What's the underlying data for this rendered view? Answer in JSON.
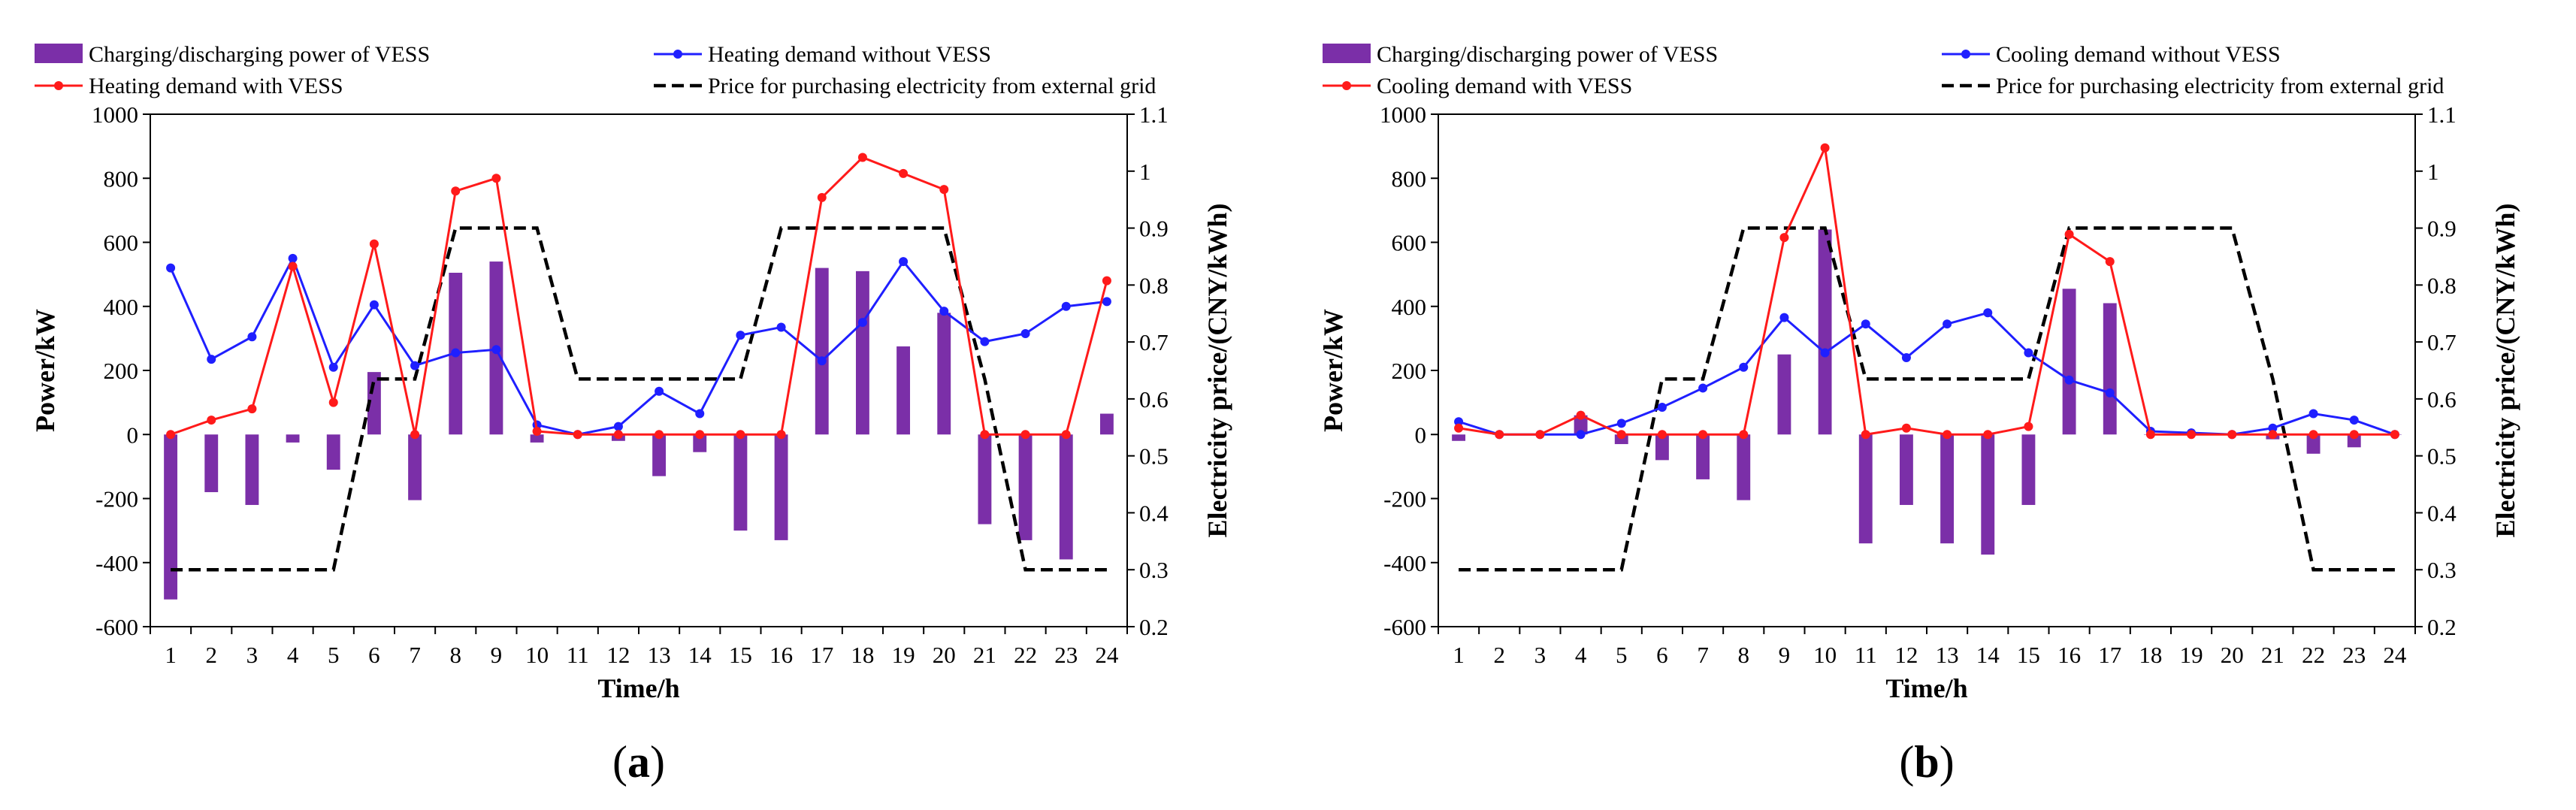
{
  "colors": {
    "bar": "#7B2FA8",
    "line_without": "#1F1FFF",
    "line_with": "#FF1A1A",
    "price": "#000000"
  },
  "chart_data": [
    {
      "type": "bar+line",
      "caption": [
        "(",
        "a",
        ")"
      ],
      "xlabel": "Time/h",
      "ylabel": "Power/kW",
      "y2label": "Electricity price/(CNY/kWh)",
      "categories": [
        "1",
        "2",
        "3",
        "4",
        "5",
        "6",
        "7",
        "8",
        "9",
        "10",
        "11",
        "12",
        "13",
        "14",
        "15",
        "16",
        "17",
        "18",
        "19",
        "20",
        "21",
        "22",
        "23",
        "24"
      ],
      "ylim": [
        -600,
        1000
      ],
      "yticks": [
        -600,
        -400,
        -200,
        0,
        200,
        400,
        600,
        800,
        1000
      ],
      "ytick_labels": [
        "-600",
        "-400",
        "-200",
        "0",
        "200",
        "400",
        "600",
        "800",
        "1000"
      ],
      "y2lim": [
        0.2,
        1.1
      ],
      "y2ticks": [
        0.2,
        0.3,
        0.4,
        0.5,
        0.6,
        0.7,
        0.8,
        0.9,
        1.0,
        1.1
      ],
      "y2tick_labels": [
        "0.2",
        "0.3",
        "0.4",
        "0.5",
        "0.6",
        "0.7",
        "0.8",
        "0.9",
        "1",
        "1.1"
      ],
      "legend": {
        "bars": "Charging/discharging power of VESS",
        "without": "Heating demand without VESS",
        "with": "Heating demand with VESS",
        "price": "Price for purchasing electricity from external grid"
      },
      "series": [
        {
          "name": "Charging/discharging power of VESS",
          "kind": "bar",
          "axis": "left",
          "values": [
            -515,
            -180,
            -220,
            -25,
            -110,
            195,
            -205,
            505,
            540,
            -25,
            5,
            -20,
            -130,
            -55,
            -300,
            -330,
            520,
            510,
            275,
            380,
            -280,
            -330,
            -390,
            65
          ]
        },
        {
          "name": "Heating demand without VESS",
          "kind": "line",
          "axis": "left",
          "values": [
            520,
            235,
            305,
            550,
            210,
            405,
            215,
            255,
            265,
            30,
            0,
            25,
            135,
            65,
            310,
            335,
            230,
            350,
            540,
            385,
            290,
            315,
            400,
            415
          ]
        },
        {
          "name": "Heating demand with VESS",
          "kind": "line",
          "axis": "left",
          "values": [
            0,
            45,
            80,
            525,
            100,
            595,
            0,
            760,
            800,
            10,
            0,
            0,
            0,
            0,
            0,
            0,
            740,
            865,
            815,
            765,
            0,
            0,
            0,
            480
          ]
        },
        {
          "name": "Price for purchasing electricity from external grid",
          "kind": "line",
          "axis": "right",
          "values": [
            0.3,
            0.3,
            0.3,
            0.3,
            0.3,
            0.635,
            0.635,
            0.9,
            0.9,
            0.9,
            0.635,
            0.635,
            0.635,
            0.635,
            0.635,
            0.9,
            0.9,
            0.9,
            0.9,
            0.9,
            0.635,
            0.3,
            0.3,
            0.3
          ]
        }
      ]
    },
    {
      "type": "bar+line",
      "caption": [
        "(",
        "b",
        ")"
      ],
      "xlabel": "Time/h",
      "ylabel": "Power/kW",
      "y2label": "Electricity price/(CNY/kWh)",
      "categories": [
        "1",
        "2",
        "3",
        "4",
        "5",
        "6",
        "7",
        "8",
        "9",
        "10",
        "11",
        "12",
        "13",
        "14",
        "15",
        "16",
        "17",
        "18",
        "19",
        "20",
        "21",
        "22",
        "23",
        "24"
      ],
      "ylim": [
        -600,
        1000
      ],
      "yticks": [
        -600,
        -400,
        -200,
        0,
        200,
        400,
        600,
        800,
        1000
      ],
      "ytick_labels": [
        "-600",
        "-400",
        "-200",
        "0",
        "200",
        "400",
        "600",
        "800",
        "1000"
      ],
      "y2lim": [
        0.2,
        1.1
      ],
      "y2ticks": [
        0.2,
        0.3,
        0.4,
        0.5,
        0.6,
        0.7,
        0.8,
        0.9,
        1.0,
        1.1
      ],
      "y2tick_labels": [
        "0.2",
        "0.3",
        "0.4",
        "0.5",
        "0.6",
        "0.7",
        "0.8",
        "0.9",
        "1",
        "1.1"
      ],
      "legend": {
        "bars": "Charging/discharging power of VESS",
        "without": "Cooling demand without VESS",
        "with": "Cooling demand with VESS",
        "price": "Price for purchasing electricity from external grid"
      },
      "series": [
        {
          "name": "Charging/discharging power of VESS",
          "kind": "bar",
          "axis": "left",
          "values": [
            -20,
            0,
            0,
            60,
            -30,
            -80,
            -140,
            -205,
            250,
            640,
            -340,
            -220,
            -340,
            -375,
            -220,
            455,
            410,
            0,
            0,
            0,
            -15,
            -60,
            -40,
            0
          ]
        },
        {
          "name": "Cooling demand without VESS",
          "kind": "line",
          "axis": "left",
          "values": [
            40,
            0,
            0,
            0,
            35,
            85,
            145,
            210,
            365,
            255,
            345,
            240,
            345,
            380,
            255,
            170,
            130,
            10,
            5,
            0,
            20,
            65,
            45,
            0
          ]
        },
        {
          "name": "Cooling demand with VESS",
          "kind": "line",
          "axis": "left",
          "values": [
            20,
            0,
            0,
            60,
            0,
            0,
            0,
            0,
            615,
            895,
            0,
            20,
            0,
            0,
            25,
            625,
            540,
            0,
            0,
            0,
            0,
            0,
            0,
            0
          ]
        },
        {
          "name": "Price for purchasing electricity from external grid",
          "kind": "line",
          "axis": "right",
          "values": [
            0.3,
            0.3,
            0.3,
            0.3,
            0.3,
            0.635,
            0.635,
            0.9,
            0.9,
            0.9,
            0.635,
            0.635,
            0.635,
            0.635,
            0.635,
            0.9,
            0.9,
            0.9,
            0.9,
            0.9,
            0.635,
            0.3,
            0.3,
            0.3
          ]
        }
      ]
    }
  ]
}
